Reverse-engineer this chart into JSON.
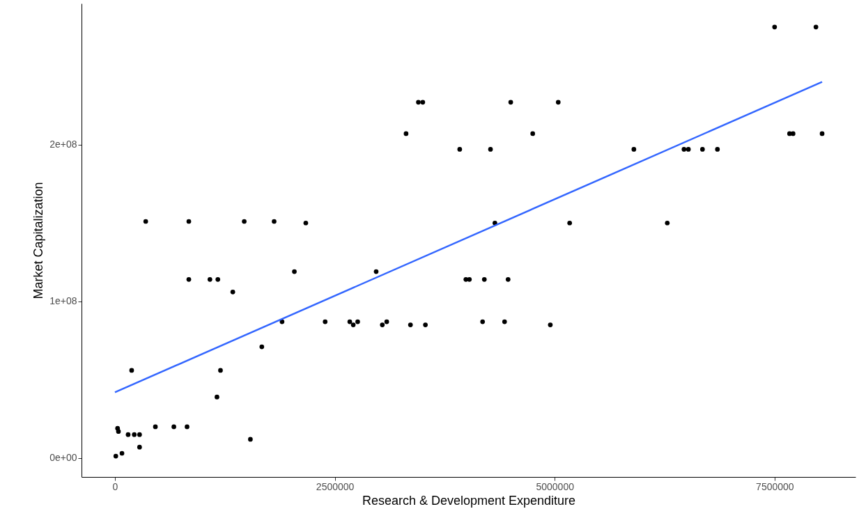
{
  "chart_data": {
    "type": "scatter",
    "xlabel": "Research & Development Expenditure",
    "ylabel": "Market Capitalization",
    "xlim": [
      -380000,
      8420000
    ],
    "xticks": [
      0,
      2500000,
      5000000,
      7500000
    ],
    "ylim": [
      -12000000,
      290000000
    ],
    "yticks": [
      {
        "value": 0,
        "label": "0e+00"
      },
      {
        "value": 100000000,
        "label": "1e+08"
      },
      {
        "value": 200000000,
        "label": "2e+08"
      }
    ],
    "grid": false,
    "series": [
      {
        "type": "scatter",
        "color": "#000000",
        "marker": "circle",
        "x": [
          10000,
          80000,
          30000,
          40000,
          150000,
          220000,
          280000,
          280000,
          460000,
          670000,
          820000,
          190000,
          350000,
          840000,
          840000,
          1080000,
          1170000,
          1200000,
          1160000,
          1340000,
          1470000,
          1540000,
          1670000,
          1810000,
          1900000,
          2040000,
          2170000,
          2390000,
          2670000,
          2710000,
          2760000,
          2970000,
          3040000,
          3090000,
          3310000,
          3360000,
          3450000,
          3500000,
          3530000,
          3920000,
          3990000,
          4030000,
          4180000,
          4200000,
          4270000,
          4320000,
          4430000,
          4470000,
          4500000,
          4750000,
          4950000,
          5040000,
          5170000,
          5900000,
          6280000,
          6470000,
          6520000,
          6680000,
          6850000,
          7500000,
          7670000,
          7710000,
          7970000,
          8040000
        ],
        "values": [
          1300000,
          3100000,
          19000000,
          17000000,
          15000000,
          15000000,
          15000000,
          7000000,
          20000000,
          20000000,
          20000000,
          56000000,
          151000000,
          151000000,
          114000000,
          114000000,
          114000000,
          56000000,
          39000000,
          106000000,
          151000000,
          12000000,
          71000000,
          151000000,
          87000000,
          119000000,
          150000000,
          87000000,
          87000000,
          85000000,
          87000000,
          119000000,
          85000000,
          87000000,
          207000000,
          85000000,
          227000000,
          227000000,
          85000000,
          197000000,
          114000000,
          114000000,
          87000000,
          114000000,
          197000000,
          150000000,
          87000000,
          114000000,
          227000000,
          207000000,
          85000000,
          227000000,
          150000000,
          197000000,
          150000000,
          197000000,
          197000000,
          197000000,
          197000000,
          275000000,
          207000000,
          207000000,
          275000000,
          207000000
        ]
      },
      {
        "type": "line",
        "color": "#3366ff",
        "marker": "none",
        "line_style": "solid",
        "x": [
          0,
          8040000
        ],
        "values": [
          42000000,
          240000000
        ]
      }
    ]
  }
}
